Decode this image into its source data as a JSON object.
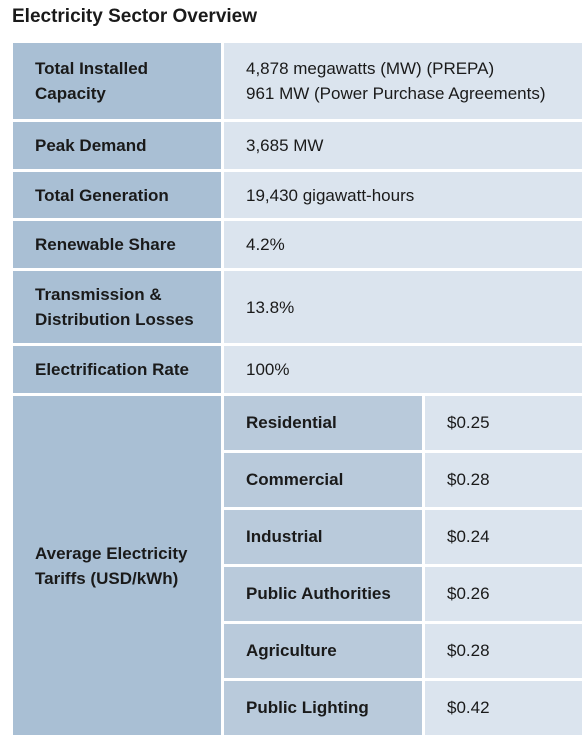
{
  "title": "Electricity Sector Overview",
  "table": {
    "rows": [
      {
        "label": "Total Installed Capacity",
        "value": [
          "4,878 megawatts (MW) (PREPA)",
          "961 MW (Power Purchase Agreements)"
        ]
      },
      {
        "label": "Peak Demand",
        "value": [
          "3,685 MW"
        ]
      },
      {
        "label": "Total Generation",
        "value": [
          "19,430 gigawatt-hours"
        ]
      },
      {
        "label": "Renewable Share",
        "value": [
          "4.2%"
        ]
      },
      {
        "label": "Transmission & Distribution Losses",
        "value": [
          "13.8%"
        ]
      },
      {
        "label": "Electrification Rate",
        "value": [
          "100%"
        ]
      }
    ],
    "tariffs": {
      "label": "Average Electricity Tariffs (USD/kWh)",
      "items": [
        {
          "sector": "Residential",
          "price": "$0.25"
        },
        {
          "sector": "Commercial",
          "price": "$0.28"
        },
        {
          "sector": "Industrial",
          "price": "$0.24"
        },
        {
          "sector": "Public Authorities",
          "price": "$0.26"
        },
        {
          "sector": "Agriculture",
          "price": "$0.28"
        },
        {
          "sector": "Public Lighting",
          "price": "$0.42"
        }
      ]
    }
  }
}
